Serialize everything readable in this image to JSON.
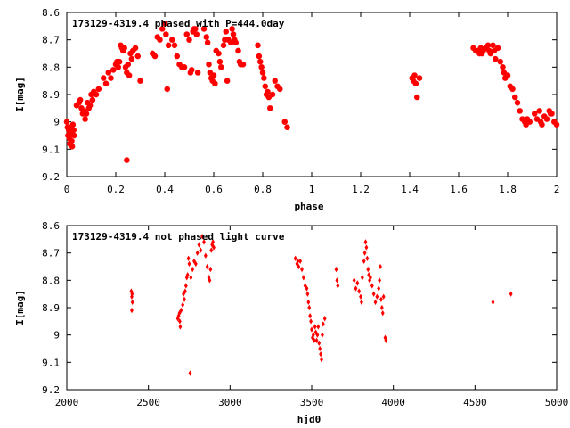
{
  "chart_data": [
    {
      "type": "scatter",
      "title": "173129-4319.4 phased with P=444.0day",
      "xlabel": "phase",
      "ylabel": "I[mag]",
      "xlim": [
        0,
        2
      ],
      "ylim": [
        8.6,
        9.2
      ],
      "y_inverted": true,
      "xticks": [
        "0",
        "0.2",
        "0.4",
        "0.6",
        "0.8",
        "1",
        "1.2",
        "1.4",
        "1.6",
        "1.8",
        "2"
      ],
      "yticks": [
        "8.6",
        "8.7",
        "8.8",
        "8.9",
        "9",
        "9.1",
        "9.2"
      ],
      "marker": "star",
      "color": "#ff0000",
      "points": [
        [
          0.0,
          9.0
        ],
        [
          0.003,
          9.02
        ],
        [
          0.005,
          9.05
        ],
        [
          0.008,
          9.03
        ],
        [
          0.01,
          9.06
        ],
        [
          0.012,
          9.08
        ],
        [
          0.015,
          9.02
        ],
        [
          0.018,
          9.04
        ],
        [
          0.02,
          9.07
        ],
        [
          0.022,
          9.09
        ],
        [
          0.025,
          9.01
        ],
        [
          0.028,
          9.03
        ],
        [
          0.03,
          9.05
        ],
        [
          0.04,
          8.94
        ],
        [
          0.05,
          8.93
        ],
        [
          0.055,
          8.92
        ],
        [
          0.06,
          8.95
        ],
        [
          0.065,
          8.97
        ],
        [
          0.07,
          8.96
        ],
        [
          0.075,
          8.99
        ],
        [
          0.08,
          8.97
        ],
        [
          0.085,
          8.93
        ],
        [
          0.09,
          8.95
        ],
        [
          0.095,
          8.94
        ],
        [
          0.1,
          8.9
        ],
        [
          0.105,
          8.92
        ],
        [
          0.11,
          8.89
        ],
        [
          0.12,
          8.9
        ],
        [
          0.13,
          8.88
        ],
        [
          0.15,
          8.84
        ],
        [
          0.16,
          8.86
        ],
        [
          0.17,
          8.82
        ],
        [
          0.18,
          8.84
        ],
        [
          0.19,
          8.81
        ],
        [
          0.2,
          8.79
        ],
        [
          0.205,
          8.78
        ],
        [
          0.21,
          8.8
        ],
        [
          0.215,
          8.78
        ],
        [
          0.22,
          8.72
        ],
        [
          0.225,
          8.73
        ],
        [
          0.23,
          8.74
        ],
        [
          0.235,
          8.73
        ],
        [
          0.24,
          8.8
        ],
        [
          0.245,
          8.82
        ],
        [
          0.25,
          8.79
        ],
        [
          0.255,
          8.83
        ],
        [
          0.26,
          8.75
        ],
        [
          0.265,
          8.77
        ],
        [
          0.27,
          8.74
        ],
        [
          0.28,
          8.73
        ],
        [
          0.29,
          8.76
        ],
        [
          0.3,
          8.85
        ],
        [
          0.245,
          9.14
        ],
        [
          0.35,
          8.75
        ],
        [
          0.36,
          8.76
        ],
        [
          0.37,
          8.69
        ],
        [
          0.38,
          8.7
        ],
        [
          0.39,
          8.66
        ],
        [
          0.4,
          8.64
        ],
        [
          0.405,
          8.68
        ],
        [
          0.41,
          8.88
        ],
        [
          0.415,
          8.72
        ],
        [
          0.43,
          8.7
        ],
        [
          0.44,
          8.72
        ],
        [
          0.45,
          8.76
        ],
        [
          0.46,
          8.79
        ],
        [
          0.47,
          8.8
        ],
        [
          0.48,
          8.8
        ],
        [
          0.49,
          8.68
        ],
        [
          0.5,
          8.7
        ],
        [
          0.505,
          8.82
        ],
        [
          0.51,
          8.81
        ],
        [
          0.515,
          8.67
        ],
        [
          0.52,
          8.66
        ],
        [
          0.525,
          8.66
        ],
        [
          0.53,
          8.68
        ],
        [
          0.535,
          8.82
        ],
        [
          0.56,
          8.66
        ],
        [
          0.57,
          8.69
        ],
        [
          0.575,
          8.71
        ],
        [
          0.58,
          8.79
        ],
        [
          0.585,
          8.82
        ],
        [
          0.59,
          8.84
        ],
        [
          0.595,
          8.85
        ],
        [
          0.6,
          8.83
        ],
        [
          0.605,
          8.86
        ],
        [
          0.61,
          8.74
        ],
        [
          0.62,
          8.75
        ],
        [
          0.625,
          8.78
        ],
        [
          0.63,
          8.8
        ],
        [
          0.64,
          8.72
        ],
        [
          0.645,
          8.7
        ],
        [
          0.65,
          8.67
        ],
        [
          0.655,
          8.85
        ],
        [
          0.66,
          8.7
        ],
        [
          0.67,
          8.71
        ],
        [
          0.675,
          8.66
        ],
        [
          0.68,
          8.68
        ],
        [
          0.685,
          8.7
        ],
        [
          0.69,
          8.71
        ],
        [
          0.7,
          8.74
        ],
        [
          0.705,
          8.78
        ],
        [
          0.71,
          8.79
        ],
        [
          0.72,
          8.79
        ],
        [
          0.78,
          8.72
        ],
        [
          0.785,
          8.76
        ],
        [
          0.79,
          8.78
        ],
        [
          0.795,
          8.8
        ],
        [
          0.8,
          8.82
        ],
        [
          0.805,
          8.84
        ],
        [
          0.81,
          8.87
        ],
        [
          0.815,
          8.9
        ],
        [
          0.82,
          8.89
        ],
        [
          0.825,
          8.91
        ],
        [
          0.83,
          8.95
        ],
        [
          0.84,
          8.9
        ],
        [
          0.85,
          8.85
        ],
        [
          0.86,
          8.87
        ],
        [
          0.87,
          8.88
        ],
        [
          0.89,
          9.0
        ],
        [
          0.9,
          9.02
        ],
        [
          1.41,
          8.84
        ],
        [
          1.415,
          8.85
        ],
        [
          1.42,
          8.83
        ],
        [
          1.425,
          8.86
        ],
        [
          1.43,
          8.91
        ],
        [
          1.44,
          8.84
        ],
        [
          1.66,
          8.73
        ],
        [
          1.67,
          8.74
        ],
        [
          1.68,
          8.74
        ],
        [
          1.685,
          8.75
        ],
        [
          1.69,
          8.73
        ],
        [
          1.695,
          8.75
        ],
        [
          1.7,
          8.74
        ],
        [
          1.71,
          8.73
        ],
        [
          1.72,
          8.72
        ],
        [
          1.725,
          8.74
        ],
        [
          1.73,
          8.75
        ],
        [
          1.74,
          8.72
        ],
        [
          1.745,
          8.74
        ],
        [
          1.75,
          8.77
        ],
        [
          1.76,
          8.73
        ],
        [
          1.77,
          8.78
        ],
        [
          1.78,
          8.8
        ],
        [
          1.785,
          8.82
        ],
        [
          1.79,
          8.84
        ],
        [
          1.8,
          8.83
        ],
        [
          1.81,
          8.87
        ],
        [
          1.82,
          8.88
        ],
        [
          1.83,
          8.91
        ],
        [
          1.84,
          8.93
        ],
        [
          1.85,
          8.96
        ],
        [
          1.86,
          8.99
        ],
        [
          1.87,
          9.0
        ],
        [
          1.875,
          9.01
        ],
        [
          1.88,
          8.99
        ],
        [
          1.89,
          9.0
        ],
        [
          1.91,
          8.97
        ],
        [
          1.92,
          8.99
        ],
        [
          1.93,
          8.96
        ],
        [
          1.935,
          9.0
        ],
        [
          1.94,
          9.01
        ],
        [
          1.95,
          8.98
        ],
        [
          1.96,
          8.99
        ],
        [
          1.97,
          8.96
        ],
        [
          1.975,
          8.97
        ],
        [
          1.98,
          8.97
        ],
        [
          1.99,
          9.0
        ],
        [
          2.0,
          9.01
        ]
      ]
    },
    {
      "type": "scatter",
      "title": "173129-4319.4 not phased light curve",
      "xlabel": "hjd0",
      "ylabel": "I[mag]",
      "xlim": [
        2000,
        5000
      ],
      "ylim": [
        8.6,
        9.2
      ],
      "y_inverted": true,
      "xticks": [
        "2000",
        "2500",
        "3000",
        "3500",
        "4000",
        "4500",
        "5000"
      ],
      "yticks": [
        "8.6",
        "8.7",
        "8.8",
        "8.9",
        "9",
        "9.1",
        "9.2"
      ],
      "marker": "diamond",
      "color": "#ff0000",
      "points": [
        [
          2395,
          8.84
        ],
        [
          2398,
          8.86
        ],
        [
          2400,
          8.85
        ],
        [
          2402,
          8.88
        ],
        [
          2398,
          8.91
        ],
        [
          2680,
          8.94
        ],
        [
          2685,
          8.93
        ],
        [
          2690,
          8.92
        ],
        [
          2692,
          8.95
        ],
        [
          2695,
          8.97
        ],
        [
          2700,
          8.91
        ],
        [
          2710,
          8.89
        ],
        [
          2715,
          8.85
        ],
        [
          2720,
          8.87
        ],
        [
          2725,
          8.84
        ],
        [
          2730,
          8.82
        ],
        [
          2735,
          8.79
        ],
        [
          2740,
          8.78
        ],
        [
          2745,
          8.72
        ],
        [
          2750,
          8.74
        ],
        [
          2755,
          9.14
        ],
        [
          2760,
          8.79
        ],
        [
          2770,
          8.76
        ],
        [
          2780,
          8.73
        ],
        [
          2790,
          8.74
        ],
        [
          2800,
          8.7
        ],
        [
          2810,
          8.67
        ],
        [
          2820,
          8.69
        ],
        [
          2830,
          8.64
        ],
        [
          2840,
          8.66
        ],
        [
          2850,
          8.71
        ],
        [
          2860,
          8.75
        ],
        [
          2870,
          8.79
        ],
        [
          2875,
          8.8
        ],
        [
          2880,
          8.76
        ],
        [
          2885,
          8.69
        ],
        [
          2890,
          8.67
        ],
        [
          2895,
          8.66
        ],
        [
          2900,
          8.68
        ],
        [
          3400,
          8.72
        ],
        [
          3410,
          8.74
        ],
        [
          3415,
          8.73
        ],
        [
          3420,
          8.75
        ],
        [
          3430,
          8.73
        ],
        [
          3440,
          8.76
        ],
        [
          3450,
          8.79
        ],
        [
          3460,
          8.82
        ],
        [
          3470,
          8.83
        ],
        [
          3475,
          8.85
        ],
        [
          3480,
          8.88
        ],
        [
          3485,
          8.9
        ],
        [
          3490,
          8.93
        ],
        [
          3495,
          8.95
        ],
        [
          3500,
          8.98
        ],
        [
          3505,
          9.01
        ],
        [
          3510,
          9.0
        ],
        [
          3515,
          9.02
        ],
        [
          3520,
          8.97
        ],
        [
          3525,
          8.99
        ],
        [
          3530,
          9.02
        ],
        [
          3535,
          9.0
        ],
        [
          3540,
          8.97
        ],
        [
          3545,
          9.03
        ],
        [
          3550,
          9.05
        ],
        [
          3555,
          9.07
        ],
        [
          3560,
          9.09
        ],
        [
          3565,
          9.0
        ],
        [
          3570,
          8.96
        ],
        [
          3580,
          8.94
        ],
        [
          3650,
          8.76
        ],
        [
          3655,
          8.8
        ],
        [
          3660,
          8.82
        ],
        [
          3760,
          8.8
        ],
        [
          3770,
          8.83
        ],
        [
          3780,
          8.81
        ],
        [
          3790,
          8.84
        ],
        [
          3800,
          8.86
        ],
        [
          3805,
          8.88
        ],
        [
          3810,
          8.79
        ],
        [
          3820,
          8.73
        ],
        [
          3825,
          8.7
        ],
        [
          3830,
          8.66
        ],
        [
          3835,
          8.68
        ],
        [
          3840,
          8.72
        ],
        [
          3845,
          8.76
        ],
        [
          3850,
          8.78
        ],
        [
          3855,
          8.8
        ],
        [
          3860,
          8.79
        ],
        [
          3870,
          8.82
        ],
        [
          3880,
          8.85
        ],
        [
          3890,
          8.88
        ],
        [
          3900,
          8.86
        ],
        [
          3910,
          8.83
        ],
        [
          3915,
          8.8
        ],
        [
          3920,
          8.75
        ],
        [
          3925,
          8.87
        ],
        [
          3930,
          8.9
        ],
        [
          3935,
          8.92
        ],
        [
          3940,
          8.86
        ],
        [
          3950,
          9.01
        ],
        [
          3955,
          9.02
        ],
        [
          4610,
          8.88
        ],
        [
          4720,
          8.85
        ]
      ]
    }
  ]
}
